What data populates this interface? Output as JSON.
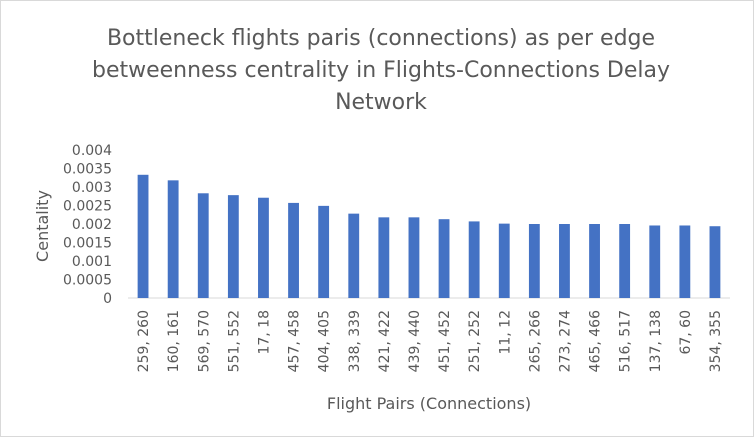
{
  "chart_data": {
    "type": "bar",
    "title": "Bottleneck flights paris (connections) as per edge betweenness centrality in Flights-Connections Delay Network",
    "xlabel": "Flight Pairs (Connections)",
    "ylabel": "Centality",
    "ylim": [
      0,
      0.004
    ],
    "yticks": [
      "0",
      "0.0005",
      "0.001",
      "0.0015",
      "0.002",
      "0.0025",
      "0.003",
      "0.0035",
      "0.004"
    ],
    "categories": [
      "259, 260",
      "160, 161",
      "569, 570",
      "551, 552",
      "17, 18",
      "457, 458",
      "404, 405",
      "338, 339",
      "421, 422",
      "439, 440",
      "451, 452",
      "251, 252",
      "11, 12",
      "265, 266",
      "273, 274",
      "465, 466",
      "516, 517",
      "137, 138",
      "67, 60",
      "354, 355"
    ],
    "values": [
      0.00333,
      0.00318,
      0.00283,
      0.00278,
      0.00271,
      0.00257,
      0.00249,
      0.00228,
      0.00218,
      0.00218,
      0.00213,
      0.00207,
      0.00201,
      0.002,
      0.002,
      0.002,
      0.002,
      0.00196,
      0.00196,
      0.00194
    ],
    "colors": {
      "bar": "#4472c4",
      "text": "#595959",
      "axis": "#d9d9d9"
    },
    "grid": false,
    "legend": "none"
  }
}
